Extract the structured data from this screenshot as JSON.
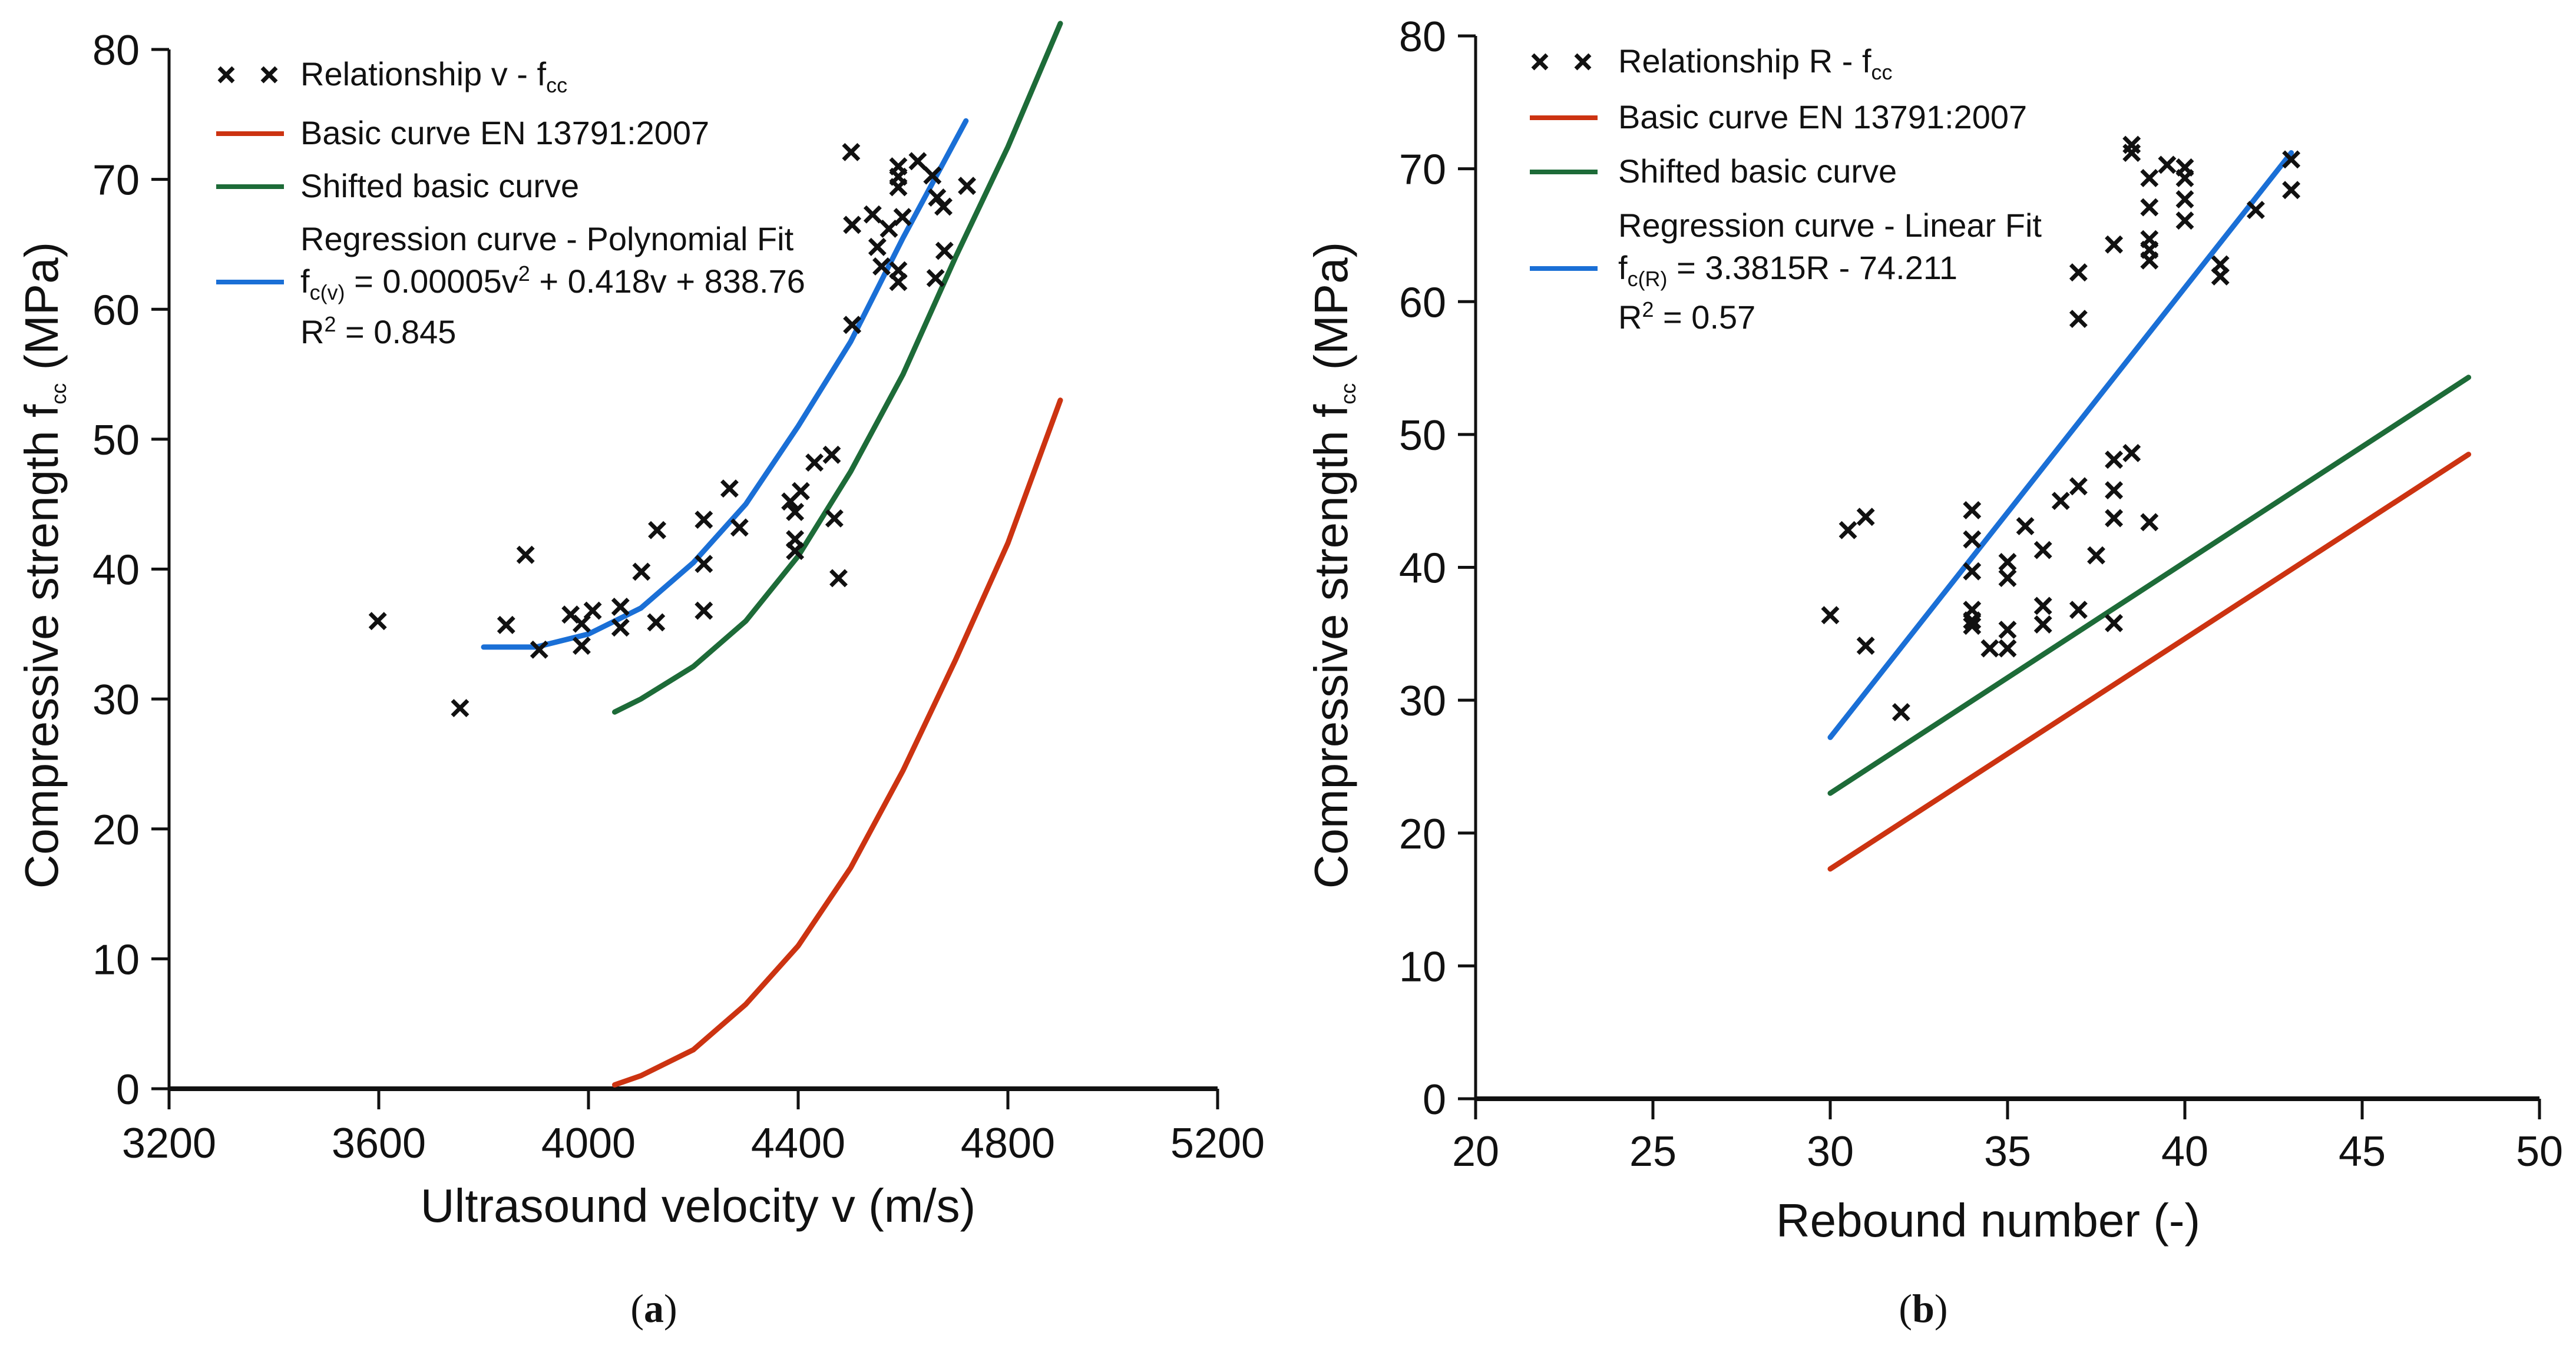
{
  "colors": {
    "basic": "#cc3311",
    "shifted": "#1d6b38",
    "regression": "#1a6fd6",
    "points": "#111111"
  },
  "captions": {
    "a": "a",
    "b": "b"
  },
  "chart_data": [
    {
      "type": "scatter",
      "id": "a",
      "xlabel": "Ultrasound velocity v (m/s)",
      "ylabel": {
        "main": "Compressive strength f",
        "sub": "cc",
        "unit": " (MPa)"
      },
      "xlim": [
        3200,
        5200
      ],
      "ylim": [
        0,
        80
      ],
      "xticks": [
        3200,
        3600,
        4000,
        4400,
        4800,
        5200
      ],
      "yticks": [
        0,
        10,
        20,
        30,
        40,
        50,
        60,
        70,
        80
      ],
      "legend_position": "top-left",
      "legend": {
        "points": {
          "main": "Relationship v - f",
          "sub": "cc"
        },
        "basic": "Basic curve EN 13791:2007",
        "shifted": "Shifted basic curve",
        "regression": "Regression curve - Polynomial Fit",
        "equation": {
          "f": "f",
          "sub": "c(v)",
          "a": " = 0.00005v",
          "sup": "2",
          "b": " + 0.418v + 838.76"
        },
        "r2": {
          "r": "R",
          "sup": "2",
          "val": " = 0.845"
        }
      },
      "points": [
        [
          3598,
          36.0
        ],
        [
          3755,
          29.3
        ],
        [
          3843,
          35.7
        ],
        [
          3880,
          41.1
        ],
        [
          3906,
          33.8
        ],
        [
          3966,
          36.5
        ],
        [
          3987,
          35.8
        ],
        [
          4008,
          36.8
        ],
        [
          3987,
          34.1
        ],
        [
          4061,
          37.1
        ],
        [
          4061,
          35.5
        ],
        [
          4101,
          39.8
        ],
        [
          4131,
          43.0
        ],
        [
          4129,
          35.9
        ],
        [
          4220,
          43.8
        ],
        [
          4220,
          40.4
        ],
        [
          4220,
          36.8
        ],
        [
          4269,
          46.2
        ],
        [
          4288,
          43.2
        ],
        [
          4385,
          45.2
        ],
        [
          4405,
          46.0
        ],
        [
          4394,
          44.4
        ],
        [
          4394,
          42.3
        ],
        [
          4394,
          41.4
        ],
        [
          4431,
          48.2
        ],
        [
          4464,
          48.8
        ],
        [
          4469,
          43.9
        ],
        [
          4477,
          39.3
        ],
        [
          4503,
          58.8
        ],
        [
          4503,
          66.5
        ],
        [
          4501,
          72.1
        ],
        [
          4542,
          67.3
        ],
        [
          4551,
          64.8
        ],
        [
          4559,
          63.3
        ],
        [
          4573,
          66.2
        ],
        [
          4591,
          71.0
        ],
        [
          4591,
          70.2
        ],
        [
          4591,
          69.4
        ],
        [
          4599,
          67.1
        ],
        [
          4591,
          63.0
        ],
        [
          4591,
          62.1
        ],
        [
          4628,
          71.4
        ],
        [
          4656,
          70.3
        ],
        [
          4665,
          68.6
        ],
        [
          4677,
          67.9
        ],
        [
          4679,
          64.5
        ],
        [
          4662,
          62.4
        ],
        [
          4722,
          69.5
        ]
      ],
      "series": [
        {
          "name": "basic",
          "x": [
            4050,
            4100,
            4200,
            4300,
            4400,
            4500,
            4600,
            4700,
            4800,
            4900
          ],
          "y": [
            0.3,
            1,
            3,
            6.5,
            11,
            17,
            24.5,
            33,
            42,
            53
          ]
        },
        {
          "name": "shifted",
          "x": [
            4050,
            4100,
            4200,
            4300,
            4400,
            4500,
            4600,
            4700,
            4800,
            4900
          ],
          "y": [
            29,
            30,
            32.5,
            36,
            41,
            47.5,
            55,
            64,
            72.5,
            82
          ]
        },
        {
          "name": "regression",
          "x": [
            3800,
            3900,
            4000,
            4100,
            4200,
            4300,
            4400,
            4500,
            4600,
            4720
          ],
          "y": [
            34,
            34,
            35,
            37,
            40.5,
            45,
            51,
            57.5,
            65.5,
            74.5
          ]
        }
      ]
    },
    {
      "type": "scatter",
      "id": "b",
      "xlabel": "Rebound number (-)",
      "ylabel": {
        "main": "Compressive strength f",
        "sub": "cc",
        "unit": " (MPa)"
      },
      "xlim": [
        20,
        50
      ],
      "ylim": [
        0,
        80
      ],
      "xticks": [
        20,
        25,
        30,
        35,
        40,
        45,
        50
      ],
      "yticks": [
        0,
        10,
        20,
        30,
        40,
        50,
        60,
        70,
        80
      ],
      "legend_position": "top-left",
      "legend": {
        "points": {
          "main": "Relationship R - f",
          "sub": "cc"
        },
        "basic": "Basic curve EN 13791:2007",
        "shifted": "Shifted basic curve",
        "regression": "Regression curve - Linear Fit",
        "equation": {
          "f": "f",
          "sub": "c(R)",
          "a": " = 3.3815R - 74.211",
          "sup": "",
          "b": ""
        },
        "r2": {
          "r": "R",
          "sup": "2",
          "val": " = 0.57"
        }
      },
      "points": [
        [
          30.0,
          36.4
        ],
        [
          31.0,
          34.1
        ],
        [
          30.5,
          42.8
        ],
        [
          31.0,
          43.8
        ],
        [
          32.0,
          29.1
        ],
        [
          34.0,
          44.3
        ],
        [
          34.0,
          42.1
        ],
        [
          34.0,
          39.7
        ],
        [
          34.0,
          36.8
        ],
        [
          34.0,
          36.0
        ],
        [
          34.0,
          35.6
        ],
        [
          34.5,
          33.9
        ],
        [
          35.0,
          33.9
        ],
        [
          35.0,
          35.3
        ],
        [
          35.0,
          40.4
        ],
        [
          35.0,
          39.2
        ],
        [
          35.5,
          43.1
        ],
        [
          36.0,
          41.3
        ],
        [
          36.0,
          37.1
        ],
        [
          36.0,
          35.7
        ],
        [
          36.5,
          45.0
        ],
        [
          37.0,
          46.1
        ],
        [
          37.0,
          36.8
        ],
        [
          37.0,
          62.2
        ],
        [
          37.0,
          58.7
        ],
        [
          37.5,
          40.9
        ],
        [
          38.0,
          64.3
        ],
        [
          38.0,
          48.1
        ],
        [
          38.0,
          45.8
        ],
        [
          38.0,
          43.7
        ],
        [
          38.0,
          35.8
        ],
        [
          38.5,
          48.6
        ],
        [
          38.5,
          71.8
        ],
        [
          38.5,
          71.2
        ],
        [
          39.0,
          69.3
        ],
        [
          39.0,
          67.1
        ],
        [
          39.0,
          64.7
        ],
        [
          39.0,
          63.9
        ],
        [
          39.0,
          63.1
        ],
        [
          39.0,
          43.4
        ],
        [
          39.5,
          70.3
        ],
        [
          40.0,
          70.1
        ],
        [
          40.0,
          69.3
        ],
        [
          40.0,
          67.7
        ],
        [
          40.0,
          66.1
        ],
        [
          41.0,
          62.8
        ],
        [
          41.0,
          61.9
        ],
        [
          42.0,
          66.9
        ],
        [
          43.0,
          70.7
        ],
        [
          43.0,
          68.4
        ]
      ],
      "series": [
        {
          "name": "basic",
          "x": [
            30,
            48
          ],
          "y": [
            17.3,
            48.5
          ]
        },
        {
          "name": "shifted",
          "x": [
            30,
            48
          ],
          "y": [
            23.0,
            54.3
          ]
        },
        {
          "name": "regression",
          "x": [
            30,
            43
          ],
          "y": [
            27.2,
            71.2
          ]
        }
      ]
    }
  ]
}
